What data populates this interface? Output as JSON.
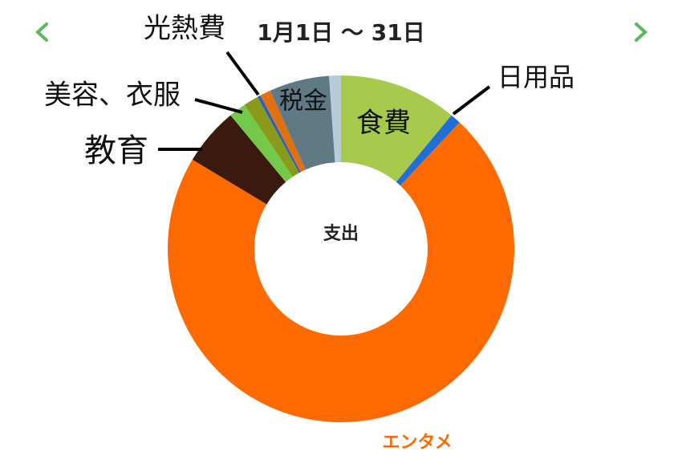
{
  "chart_data": {
    "type": "donut",
    "title": "1月1日 〜 31日",
    "center_label": "支出",
    "categories": [
      "食費",
      "日用品",
      "エンタメ",
      "教育",
      null,
      "美容、衣服",
      null,
      "光熱費",
      "税金",
      null
    ],
    "values": [
      11,
      1,
      71.6,
      5.4,
      1.6,
      1.4,
      0.3,
      1.0,
      5.6,
      1.1
    ],
    "colors": [
      "#a8ca4c",
      "#1f6fd6",
      "#ff6a00",
      "#3a1a0e",
      "#74c94a",
      "#8a9a1a",
      "#2b5fbf",
      "#e07010",
      "#5f7a85",
      "#b8cbd6"
    ]
  }
}
